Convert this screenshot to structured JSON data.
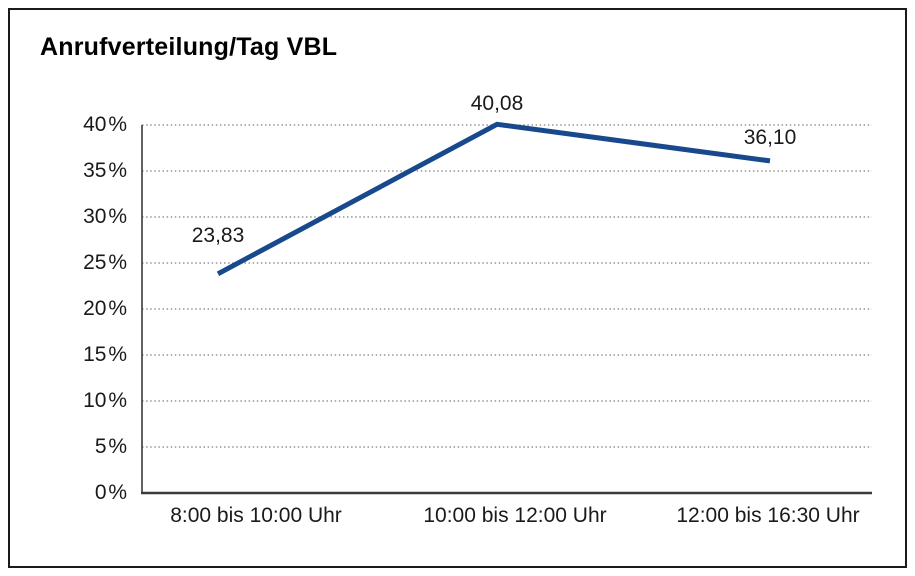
{
  "chart_data": {
    "type": "line",
    "title": "Anrufverteilung/Tag VBL",
    "categories": [
      "8:00 bis 10:00 Uhr",
      "10:00 bis 12:00 Uhr",
      "12:00 bis 16:30 Uhr"
    ],
    "values": [
      23.83,
      40.08,
      36.1
    ],
    "data_labels": [
      "23,83",
      "40,08",
      "36,10"
    ],
    "y_tick_values": [
      0,
      5,
      10,
      15,
      20,
      25,
      30,
      35,
      40
    ],
    "y_tick_labels": [
      "0 %",
      "5 %",
      "10 %",
      "15 %",
      "20 %",
      "25 %",
      "30 %",
      "35 %",
      "40 %"
    ],
    "ylim": [
      0,
      40
    ],
    "xlabel": "",
    "ylabel": "",
    "grid": "horizontal-dotted",
    "legend": "none",
    "colors": {
      "line": "#17498C",
      "grid": "#7f7f7f",
      "axis": "#3a3a3a",
      "text": "#1a1a1a",
      "frame": "#1a1a1a",
      "background": "#ffffff"
    }
  }
}
